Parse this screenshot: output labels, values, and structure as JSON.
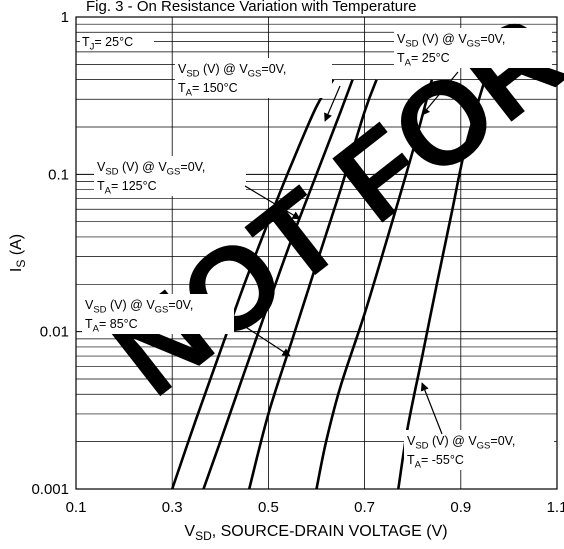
{
  "chart_data": {
    "type": "line",
    "title": "Fig. 3 - On Resistance Variation with Temperature",
    "xlabel": {
      "main": "V",
      "sub": "SD",
      "rest": ", SOURCE-DRAIN VOLTAGE (V)"
    },
    "ylabel": {
      "main": "I",
      "sub": "S",
      "rest": " (A)"
    },
    "xlim": [
      0.1,
      1.1
    ],
    "ylim": [
      0.001,
      1
    ],
    "y_scale": "log",
    "grid": true,
    "x_ticks": [
      "0.1",
      "0.3",
      "0.5",
      "0.7",
      "0.9",
      "1.1"
    ],
    "y_ticks": [
      "0.001",
      "0.01",
      "0.1",
      "1"
    ],
    "tj_label": {
      "main": "T",
      "sub": "J",
      "rest": "= 25°C"
    },
    "series": [
      {
        "label_line1": [
          "V",
          "SD",
          " (V) @ V",
          "GS",
          "=0V,"
        ],
        "label_line2": [
          "T",
          "A",
          "= 150°C"
        ],
        "x": [
          0.3,
          0.35,
          0.4,
          0.45,
          0.5,
          0.55,
          0.6,
          0.635
        ],
        "y": [
          0.001,
          0.0028,
          0.0075,
          0.02,
          0.05,
          0.12,
          0.27,
          0.4
        ]
      },
      {
        "label_line1": [
          "V",
          "SD",
          " (V) @ V",
          "GS",
          "=0V,"
        ],
        "label_line2": [
          "T",
          "A",
          "= 125°C"
        ],
        "x": [
          0.365,
          0.4,
          0.45,
          0.5,
          0.55,
          0.6,
          0.65,
          0.675
        ],
        "y": [
          0.001,
          0.002,
          0.0055,
          0.015,
          0.04,
          0.1,
          0.25,
          0.4
        ]
      },
      {
        "label_line1": [
          "V",
          "SD",
          " (V) @ V",
          "GS",
          "=0V,"
        ],
        "label_line2": [
          "T",
          "A",
          "= 85°C"
        ],
        "x": [
          0.46,
          0.5,
          0.55,
          0.6,
          0.65,
          0.7,
          0.725
        ],
        "y": [
          0.001,
          0.003,
          0.009,
          0.027,
          0.08,
          0.25,
          0.4
        ]
      },
      {
        "label_line1": [
          "V",
          "SD",
          " (V) @ V",
          "GS",
          "=0V,"
        ],
        "label_line2": [
          "T",
          "A",
          "= 25°C"
        ],
        "x": [
          0.6,
          0.62,
          0.65,
          0.7,
          0.75,
          0.8,
          0.84
        ],
        "y": [
          0.001,
          0.002,
          0.0045,
          0.013,
          0.042,
          0.14,
          0.4
        ]
      },
      {
        "label_line1": [
          "V",
          "SD",
          " (V) @ V",
          "GS",
          "=0V,"
        ],
        "label_line2": [
          "T",
          "A",
          "= -55°C"
        ],
        "x": [
          0.77,
          0.79,
          0.82,
          0.85,
          0.88,
          0.91,
          0.95
        ],
        "y": [
          0.001,
          0.0025,
          0.007,
          0.02,
          0.055,
          0.15,
          0.4
        ]
      }
    ],
    "watermark": "NOT FOR"
  }
}
